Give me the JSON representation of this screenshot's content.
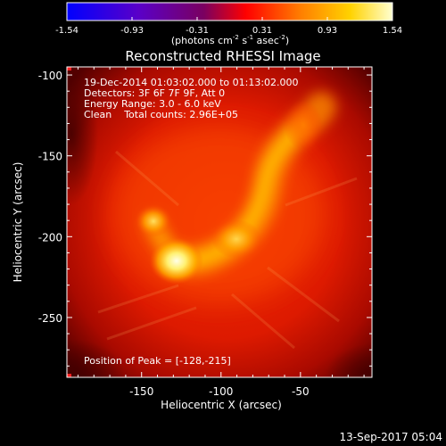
{
  "colorbar": {
    "tick_labels": [
      "-1.54",
      "-0.93",
      "-0.31",
      "0.31",
      "0.93",
      "1.54"
    ],
    "unit_label_parts": [
      "(photons cm",
      "-2",
      " s",
      "-1",
      " asec",
      "-2",
      ")"
    ],
    "range": [
      -1.54,
      1.54
    ],
    "colormap": [
      "#0000ff",
      "#5a00c8",
      "#7a0060",
      "#ff0000",
      "#ff8000",
      "#ffd200",
      "#ffffd0"
    ]
  },
  "title": "Reconstructed RHESSI Image",
  "info_lines": [
    "19-Dec-2014 01:03:02.000 to 01:13:02.000",
    "Detectors: 3F 6F 7F 9F, Att 0",
    "Energy Range: 3.0 - 6.0 keV",
    "Clean    Total counts: 2.96E+05"
  ],
  "peak_text": "Position of Peak = [-128,-215]",
  "timestamp": "13-Sep-2017 05:04",
  "colors": {
    "background": "#000000",
    "text": "#ffffff",
    "corner_marker": "#ff2020"
  },
  "image": {
    "xlim": [
      -197,
      -5
    ],
    "ylim": [
      -287,
      -95
    ],
    "xlabel": "Heliocentric X (arcsec)",
    "ylabel": "Heliocentric Y (arcsec)",
    "xticks": [
      -150,
      -100,
      -50
    ],
    "xtick_labels": [
      "-150",
      "-100",
      "-50"
    ],
    "yticks": [
      -100,
      -150,
      -200,
      -250
    ],
    "ytick_labels": [
      "-100",
      "-150",
      "-200",
      "-250"
    ],
    "peak": [
      -128,
      -215
    ]
  }
}
